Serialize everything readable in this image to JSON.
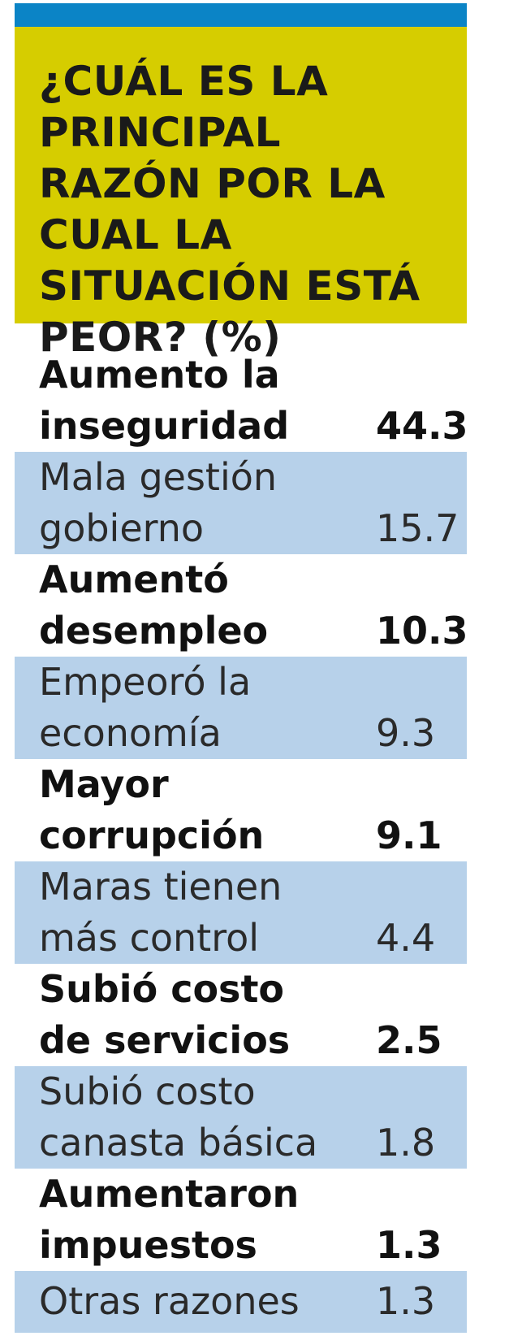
{
  "title": "¿CUÁL ES LA PRINCIPAL RAZÓN POR LA CUAL LA SITUACIÓN ESTÁ PEOR? (%)",
  "colors": {
    "topbar": "#0b84c6",
    "header": "#d6cd00",
    "alt_row": "#b7d1ea"
  },
  "chart_data": {
    "type": "table",
    "title": "¿CUÁL ES LA PRINCIPAL RAZÓN POR LA CUAL LA SITUACIÓN ESTÁ PEOR? (%)",
    "rows": [
      {
        "label": "Aumento la\ninseguridad",
        "value": "44.3"
      },
      {
        "label": "Mala gestión\ngobierno",
        "value": "15.7"
      },
      {
        "label": "Aumentó\ndesempleo",
        "value": "10.3"
      },
      {
        "label": "Empeoró la\neconomía",
        "value": "9.3"
      },
      {
        "label": "Mayor\ncorrupción",
        "value": "9.1"
      },
      {
        "label": "Maras tienen\nmás control",
        "value": "4.4"
      },
      {
        "label": "Subió costo\nde servicios",
        "value": "2.5"
      },
      {
        "label": "Subió costo\ncanasta básica",
        "value": "1.8"
      },
      {
        "label": "Aumentaron\nimpuestos",
        "value": "1.3"
      },
      {
        "label": "Otras razones",
        "value": "1.3"
      }
    ]
  }
}
